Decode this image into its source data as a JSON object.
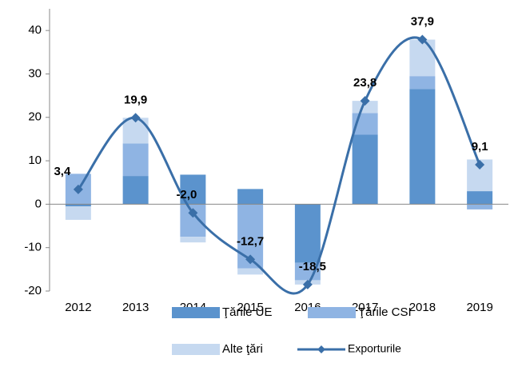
{
  "chart_data": {
    "type": "bar",
    "categories": [
      "2012",
      "2013",
      "2014",
      "2015",
      "2016",
      "2017",
      "2018",
      "2019"
    ],
    "series": [
      {
        "name": "Ţările UE",
        "color": "#5b93cd",
        "values": [
          -0.5,
          6.5,
          6.8,
          3.5,
          -13.5,
          16,
          26.5,
          3.0
        ]
      },
      {
        "name": "Ţările CSI",
        "color": "#8fb4e3",
        "values": [
          7.0,
          7.5,
          -7.5,
          -14.8,
          -4.0,
          5.0,
          3.0,
          -1.2
        ]
      },
      {
        "name": "Alte ţări",
        "color": "#c6d9f0",
        "values": [
          -3.1,
          5.9,
          -1.3,
          -1.4,
          -1.0,
          2.8,
          8.4,
          7.3
        ]
      },
      {
        "name": "Exporturile",
        "type": "line",
        "color": "#3a6fa8",
        "values": [
          3.4,
          19.9,
          -2.0,
          -12.7,
          -18.5,
          23.8,
          37.9,
          9.1
        ],
        "value_labels": [
          "3,4",
          "19,9",
          "-2,0",
          "-12,7",
          "-18,5",
          "23,8",
          "37,9",
          "9,1"
        ]
      }
    ],
    "ylim": [
      -20,
      45
    ],
    "yticks": [
      -20,
      -10,
      0,
      10,
      20,
      30,
      40
    ]
  }
}
